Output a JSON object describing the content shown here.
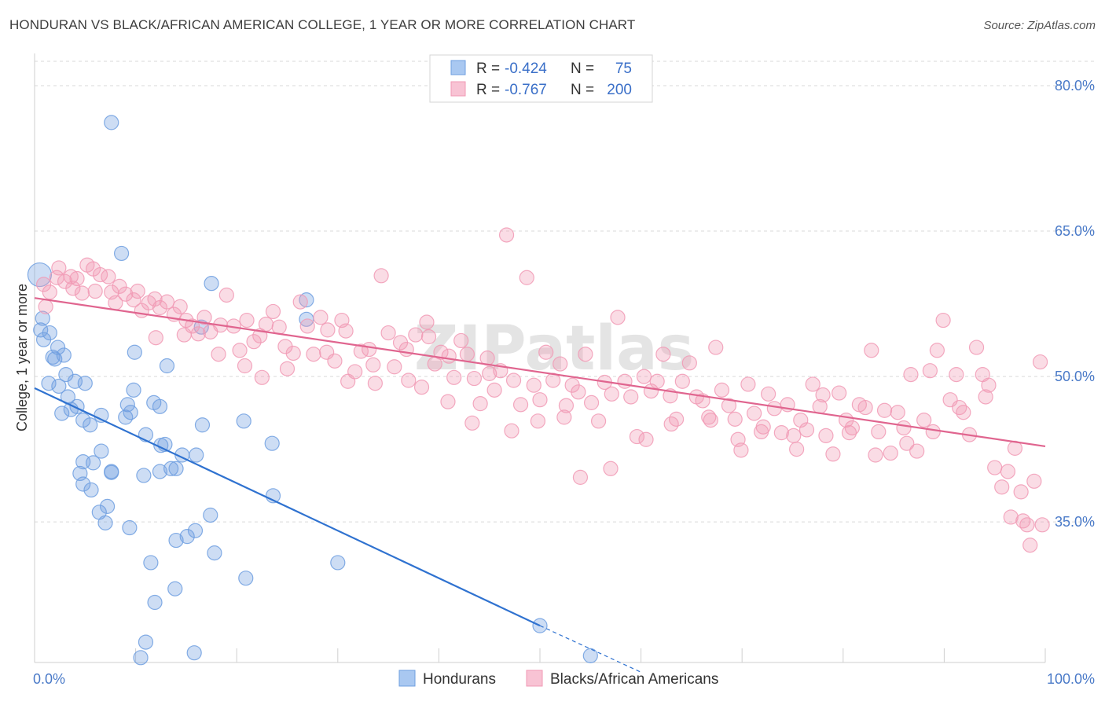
{
  "title": "HONDURAN VS BLACK/AFRICAN AMERICAN COLLEGE, 1 YEAR OR MORE CORRELATION CHART",
  "source": "Source: ZipAtlas.com",
  "colors": {
    "blue": "#6f9fe0",
    "blue_line": "#2f72d0",
    "pink": "#f19ab5",
    "pink_line": "#e0658f",
    "grid": "#d9d9d9",
    "tick": "#4a7ac8"
  },
  "chart_data": {
    "type": "scatter",
    "xlabel": "",
    "ylabel": "College, 1 year or more",
    "xlim": [
      0,
      100
    ],
    "ylim": [
      20.5,
      83
    ],
    "x_ticks": [
      {
        "value": 0,
        "label": "0.0%"
      },
      {
        "value": 100,
        "label": "100.0%"
      }
    ],
    "y_ticks": [
      {
        "value": 35,
        "label": "35.0%"
      },
      {
        "value": 50,
        "label": "50.0%"
      },
      {
        "value": 65,
        "label": "65.0%"
      },
      {
        "value": 80,
        "label": "80.0%"
      }
    ],
    "grid": true,
    "watermark": "ZIPatlas",
    "legend_stats": [
      {
        "r_label": "R =",
        "r": "-0.424",
        "n_label": "N =",
        "n": "75"
      },
      {
        "r_label": "R =",
        "r": "-0.767",
        "n_label": "N =",
        "n": "200"
      }
    ],
    "series": [
      {
        "name": "Hondurans",
        "color": "#6f9fe0",
        "trendline": {
          "x": [
            0,
            50
          ],
          "y": [
            48.8,
            24.3
          ],
          "dashed_to": {
            "x": 60,
            "y": 19.5
          }
        },
        "points": [
          [
            0.5,
            60.5
          ],
          [
            0.8,
            56
          ],
          [
            0.6,
            54.8
          ],
          [
            0.9,
            53.8
          ],
          [
            1.5,
            54.5
          ],
          [
            1.8,
            52
          ],
          [
            2,
            51.8
          ],
          [
            2.3,
            53
          ],
          [
            2.9,
            52.2
          ],
          [
            1.4,
            49.3
          ],
          [
            2.4,
            49
          ],
          [
            3.1,
            50.2
          ],
          [
            4,
            49.5
          ],
          [
            3.3,
            47.9
          ],
          [
            3.6,
            46.6
          ],
          [
            2.7,
            46.2
          ],
          [
            4.2,
            46.9
          ],
          [
            5,
            49.3
          ],
          [
            4.8,
            45.5
          ],
          [
            5.5,
            45
          ],
          [
            6.6,
            46
          ],
          [
            9,
            45.8
          ],
          [
            9.2,
            47.1
          ],
          [
            9.8,
            48.6
          ],
          [
            9.5,
            46.3
          ],
          [
            9.9,
            52.5
          ],
          [
            11.8,
            47.3
          ],
          [
            12.4,
            46.9
          ],
          [
            13.1,
            51.1
          ],
          [
            12.9,
            43
          ],
          [
            11,
            44
          ],
          [
            10.8,
            39.8
          ],
          [
            12.5,
            42.9
          ],
          [
            13.5,
            40.5
          ],
          [
            14,
            40.5
          ],
          [
            14.6,
            41.9
          ],
          [
            16,
            41.9
          ],
          [
            16.6,
            45
          ],
          [
            20.7,
            45.4
          ],
          [
            23.5,
            43.1
          ],
          [
            23.6,
            37.7
          ],
          [
            26.9,
            55.9
          ],
          [
            26.9,
            57.9
          ],
          [
            17.5,
            59.6
          ],
          [
            7.6,
            76.2
          ],
          [
            8.6,
            62.7
          ],
          [
            4.5,
            40
          ],
          [
            4.8,
            41.2
          ],
          [
            5.8,
            41.1
          ],
          [
            6.6,
            42.3
          ],
          [
            7.6,
            40.2
          ],
          [
            4.8,
            38.9
          ],
          [
            5.6,
            38.3
          ],
          [
            7.6,
            40.1
          ],
          [
            6.4,
            36
          ],
          [
            7.2,
            36.6
          ],
          [
            7,
            34.9
          ],
          [
            9.4,
            34.4
          ],
          [
            12.4,
            40.2
          ],
          [
            14,
            33.1
          ],
          [
            15.1,
            33.5
          ],
          [
            15.9,
            34.1
          ],
          [
            17.4,
            35.7
          ],
          [
            17.8,
            31.8
          ],
          [
            11.5,
            30.8
          ],
          [
            13.9,
            28.1
          ],
          [
            11.9,
            26.7
          ],
          [
            20.9,
            29.2
          ],
          [
            30,
            30.8
          ],
          [
            50,
            24.3
          ],
          [
            55,
            21.2
          ],
          [
            11,
            22.6
          ],
          [
            15.8,
            21.5
          ],
          [
            10.5,
            21
          ],
          [
            16.5,
            55.1
          ]
        ]
      },
      {
        "name": "Blacks/African Americans",
        "color": "#f19ab5",
        "trendline": {
          "x": [
            0,
            100
          ],
          "y": [
            58.1,
            42.8
          ]
        },
        "points": [
          [
            0.9,
            59.5
          ],
          [
            1.5,
            58.7
          ],
          [
            1.1,
            57.2
          ],
          [
            2.4,
            61.2
          ],
          [
            3,
            59.8
          ],
          [
            3.6,
            60.3
          ],
          [
            4.2,
            60.1
          ],
          [
            4.7,
            58.6
          ],
          [
            5.2,
            61.5
          ],
          [
            5.8,
            61.1
          ],
          [
            6.5,
            60.5
          ],
          [
            7.3,
            60.3
          ],
          [
            7.6,
            58.7
          ],
          [
            8.4,
            59.3
          ],
          [
            9,
            58.5
          ],
          [
            9.8,
            57.9
          ],
          [
            10.2,
            58.8
          ],
          [
            10.6,
            56.8
          ],
          [
            11.3,
            57.6
          ],
          [
            11.9,
            58
          ],
          [
            12.4,
            57.1
          ],
          [
            13.1,
            57.7
          ],
          [
            13.8,
            56.4
          ],
          [
            14.4,
            57.2
          ],
          [
            15,
            55.8
          ],
          [
            15.6,
            55.2
          ],
          [
            16.2,
            54.4
          ],
          [
            16.8,
            56.1
          ],
          [
            17.4,
            54.6
          ],
          [
            18.4,
            55.3
          ],
          [
            19,
            58.4
          ],
          [
            19.7,
            55.2
          ],
          [
            20.3,
            52.7
          ],
          [
            21,
            55.8
          ],
          [
            21.7,
            53.6
          ],
          [
            22.3,
            54.2
          ],
          [
            22.9,
            55.4
          ],
          [
            23.6,
            56.7
          ],
          [
            24.2,
            55.1
          ],
          [
            24.8,
            53.1
          ],
          [
            25.6,
            52.4
          ],
          [
            26.3,
            57.7
          ],
          [
            27,
            55.2
          ],
          [
            27.6,
            52.3
          ],
          [
            28.3,
            56.1
          ],
          [
            29,
            54.8
          ],
          [
            29.7,
            51.6
          ],
          [
            30.4,
            55.8
          ],
          [
            31,
            49.5
          ],
          [
            31.7,
            50.5
          ],
          [
            32.3,
            52.6
          ],
          [
            33.1,
            52.8
          ],
          [
            33.7,
            49.3
          ],
          [
            34.3,
            60.4
          ],
          [
            35,
            54.5
          ],
          [
            35.6,
            51
          ],
          [
            36.2,
            53.5
          ],
          [
            37,
            49.6
          ],
          [
            37.7,
            54.3
          ],
          [
            38.3,
            48.9
          ],
          [
            39,
            54.1
          ],
          [
            39.6,
            51.3
          ],
          [
            40.2,
            52.5
          ],
          [
            40.9,
            47.4
          ],
          [
            41.5,
            49.9
          ],
          [
            42.2,
            53.7
          ],
          [
            42.8,
            52.3
          ],
          [
            43.5,
            49.8
          ],
          [
            44.1,
            47.2
          ],
          [
            44.8,
            51.9
          ],
          [
            45.5,
            48.6
          ],
          [
            46.1,
            50.6
          ],
          [
            46.7,
            64.6
          ],
          [
            47.4,
            49.6
          ],
          [
            48.1,
            47.1
          ],
          [
            48.7,
            60.2
          ],
          [
            49.4,
            49.1
          ],
          [
            50,
            47.6
          ],
          [
            50.6,
            52.5
          ],
          [
            51.3,
            49.6
          ],
          [
            52,
            51.3
          ],
          [
            52.6,
            47
          ],
          [
            53.2,
            49.1
          ],
          [
            53.8,
            48.4
          ],
          [
            54.5,
            52.3
          ],
          [
            55.1,
            47.3
          ],
          [
            55.8,
            45.4
          ],
          [
            56.4,
            49.4
          ],
          [
            57.1,
            48.2
          ],
          [
            57.7,
            56.1
          ],
          [
            58.4,
            49.5
          ],
          [
            59,
            47.9
          ],
          [
            59.6,
            43.8
          ],
          [
            60.3,
            50
          ],
          [
            61,
            48.5
          ],
          [
            61.6,
            49.5
          ],
          [
            62.2,
            52.3
          ],
          [
            62.9,
            48
          ],
          [
            63.5,
            45.6
          ],
          [
            64.1,
            49.5
          ],
          [
            64.8,
            51.4
          ],
          [
            65.5,
            47.9
          ],
          [
            66.1,
            47.5
          ],
          [
            66.7,
            45.8
          ],
          [
            67.4,
            53
          ],
          [
            68,
            48.6
          ],
          [
            68.7,
            47
          ],
          [
            69.3,
            45.6
          ],
          [
            69.9,
            42.4
          ],
          [
            70.6,
            49.2
          ],
          [
            71.2,
            46.2
          ],
          [
            71.9,
            44.3
          ],
          [
            72.6,
            48.2
          ],
          [
            73.2,
            46.7
          ],
          [
            73.9,
            44.2
          ],
          [
            74.5,
            47.1
          ],
          [
            75.1,
            43.9
          ],
          [
            75.8,
            45.5
          ],
          [
            76.4,
            44.5
          ],
          [
            77,
            49.2
          ],
          [
            77.7,
            46.9
          ],
          [
            78.3,
            43.9
          ],
          [
            79,
            42
          ],
          [
            79.6,
            48.3
          ],
          [
            80.3,
            45.5
          ],
          [
            80.9,
            44.7
          ],
          [
            81.6,
            47.1
          ],
          [
            82.2,
            46.8
          ],
          [
            82.8,
            52.7
          ],
          [
            83.5,
            44.3
          ],
          [
            84.1,
            46.5
          ],
          [
            84.7,
            42.1
          ],
          [
            85.4,
            46.3
          ],
          [
            86,
            44.7
          ],
          [
            86.7,
            50.2
          ],
          [
            87.3,
            42.3
          ],
          [
            88,
            45.5
          ],
          [
            88.6,
            50.6
          ],
          [
            89.3,
            52.7
          ],
          [
            89.9,
            55.8
          ],
          [
            90.6,
            47.6
          ],
          [
            91.2,
            50.2
          ],
          [
            91.9,
            46.3
          ],
          [
            92.5,
            44
          ],
          [
            93.2,
            53
          ],
          [
            93.8,
            50.2
          ],
          [
            94.4,
            49.1
          ],
          [
            95,
            40.6
          ],
          [
            95.7,
            38.6
          ],
          [
            96.3,
            40.2
          ],
          [
            97,
            42.6
          ],
          [
            97.6,
            38.1
          ],
          [
            98.2,
            34.7
          ],
          [
            98.9,
            39.2
          ],
          [
            99.5,
            51.5
          ],
          [
            2.2,
            60.2
          ],
          [
            3.8,
            59.1
          ],
          [
            6,
            58.8
          ],
          [
            8,
            57.6
          ],
          [
            12,
            54
          ],
          [
            14.8,
            54.3
          ],
          [
            18.2,
            52.3
          ],
          [
            20.8,
            51.1
          ],
          [
            22.5,
            49.9
          ],
          [
            25,
            50.8
          ],
          [
            28.9,
            52.5
          ],
          [
            30.8,
            54.7
          ],
          [
            33.5,
            51.2
          ],
          [
            36.8,
            52.8
          ],
          [
            38.8,
            55.6
          ],
          [
            41,
            52.1
          ],
          [
            43.3,
            45.2
          ],
          [
            45,
            50.3
          ],
          [
            47.2,
            44.4
          ],
          [
            49.8,
            45.4
          ],
          [
            52.4,
            45.8
          ],
          [
            54,
            39.6
          ],
          [
            57,
            40.5
          ],
          [
            60.5,
            43.5
          ],
          [
            63,
            45.1
          ],
          [
            66.9,
            45.5
          ],
          [
            69.6,
            43.5
          ],
          [
            72.1,
            44.8
          ],
          [
            75.4,
            42.5
          ],
          [
            78,
            48.1
          ],
          [
            80.6,
            44.2
          ],
          [
            83.2,
            41.9
          ],
          [
            86.3,
            43.1
          ],
          [
            88.9,
            44.3
          ],
          [
            91.5,
            46.8
          ],
          [
            94.1,
            47.9
          ],
          [
            96.6,
            35.5
          ],
          [
            97.8,
            35.1
          ],
          [
            98.5,
            32.6
          ],
          [
            99.7,
            34.7
          ]
        ]
      }
    ]
  }
}
